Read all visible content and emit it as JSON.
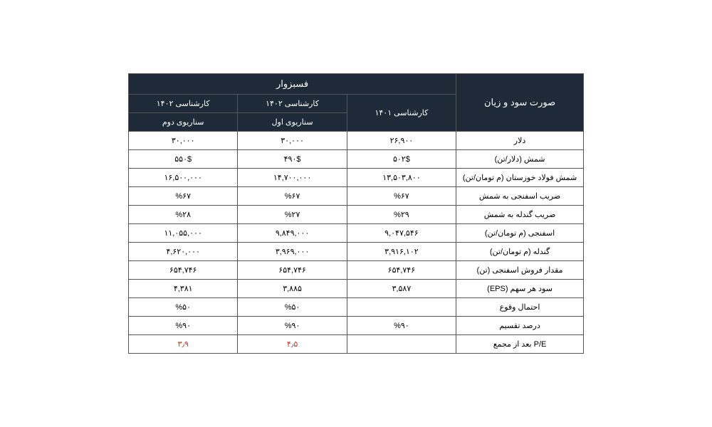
{
  "styling": {
    "header_bg": "#1e2a38",
    "header_fg": "#ffffff",
    "border_color": "#555555",
    "body_bg": "#ffffff",
    "highlight_color": "#c0392b",
    "font_size_header": 13,
    "font_size_body": 11
  },
  "header": {
    "main_label": "صورت سود و زیان",
    "brand": "فسبزوار",
    "col1": "کارشناسی ۱۴۰۱",
    "col2_top": "کارشناسی ۱۴۰۲",
    "col2_sub": "سناریوی اول",
    "col3_top": "کارشناسی ۱۴۰۲",
    "col3_sub": "سناریوی دوم"
  },
  "rows": [
    {
      "label": "دلار",
      "v1": "۲۶,۹۰۰",
      "v2": "۳۰,۰۰۰",
      "v3": "۳۰,۰۰۰"
    },
    {
      "label": "شمش (دلار/تن)",
      "v1": "۵۰۲$",
      "v2": "۴۹۰$",
      "v3": "۵۵۰$"
    },
    {
      "label": "شمش فولاد خوزستان (م تومان/تن)",
      "v1": "۱۳,۵۰۳,۸۰۰",
      "v2": "۱۴,۷۰۰,۰۰۰",
      "v3": "۱۶,۵۰۰,۰۰۰"
    },
    {
      "label": "ضریب اسفنجی به شمش",
      "v1": "%۶۷",
      "v2": "%۶۷",
      "v3": "%۶۷"
    },
    {
      "label": "ضریب گندله به شمش",
      "v1": "%۲۹",
      "v2": "%۲۷",
      "v3": "%۲۸"
    },
    {
      "label": "اسفنجی (م تومان/تن)",
      "v1": "۹,۰۴۷,۵۴۶",
      "v2": "۹,۸۴۹,۰۰۰",
      "v3": "۱۱,۰۵۵,۰۰۰"
    },
    {
      "label": "گندله (م تومان/تن)",
      "v1": "۳,۹۱۶,۱۰۲",
      "v2": "۳,۹۶۹,۰۰۰",
      "v3": "۴,۶۲۰,۰۰۰"
    },
    {
      "label": "مقدار فروش اسفنجی (تن)",
      "v1": "۶۵۴,۷۴۶",
      "v2": "۶۵۴,۷۴۶",
      "v3": "۶۵۴,۷۴۶"
    },
    {
      "label": "سود هر سهم (EPS)",
      "v1": "۳,۵۸۷",
      "v2": "۳,۸۸۵",
      "v3": "۴,۳۸۱"
    },
    {
      "label": "احتمال وقوع",
      "v1": "",
      "v2": "%۵۰",
      "v3": "%۵۰"
    },
    {
      "label": "درصد تقسیم",
      "v1": "%۹۰",
      "v2": "%۹۰",
      "v3": "%۹۰"
    },
    {
      "label": "P/E بعد از مجمع",
      "v1": "",
      "v2": "۴٫۵",
      "v3": "۳٫۹",
      "highlight": true
    }
  ]
}
